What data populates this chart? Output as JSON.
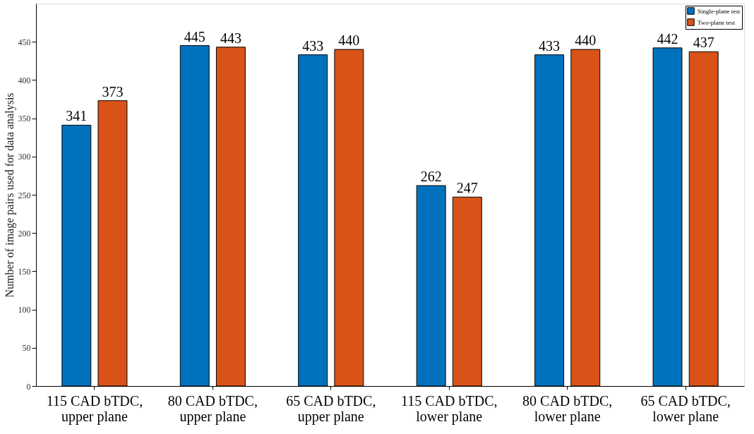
{
  "chart_data": {
    "type": "bar",
    "ylabel": "Number of image pairs used for data analysis",
    "categories": [
      "115 CAD bTDC, upper plane",
      "80 CAD bTDC, upper plane",
      "65 CAD bTDC, upper plane",
      "115 CAD bTDC, lower plane",
      "80 CAD bTDC, lower plane",
      "65 CAD bTDC, lower plane"
    ],
    "series": [
      {
        "name": "Single-plane test",
        "color": "#0072bd",
        "values": [
          341,
          445,
          433,
          262,
          433,
          442
        ]
      },
      {
        "name": "Two-plane test",
        "color": "#d95319",
        "values": [
          373,
          443,
          440,
          247,
          440,
          437
        ]
      }
    ],
    "ylim": [
      0,
      500
    ],
    "yticks": [
      0,
      50,
      100,
      150,
      200,
      250,
      300,
      350,
      400,
      450
    ],
    "data_labels": true,
    "grid": false,
    "legend": "top right"
  }
}
